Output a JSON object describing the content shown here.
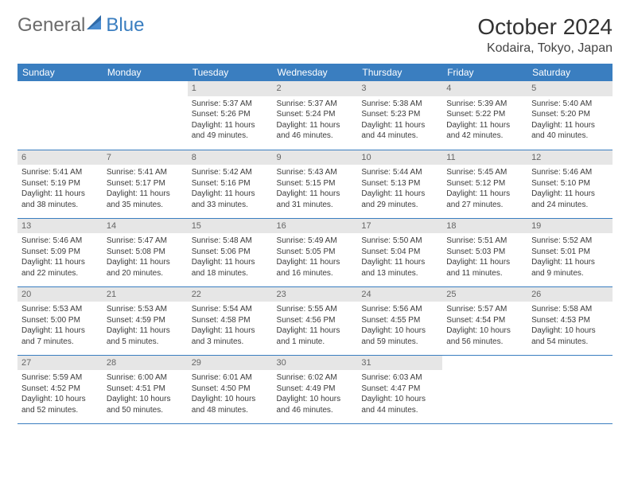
{
  "brand": {
    "part1": "General",
    "part2": "Blue"
  },
  "title": "October 2024",
  "location": "Kodaira, Tokyo, Japan",
  "colors": {
    "header_bg": "#3a7ec0",
    "header_text": "#ffffff",
    "daynum_bg": "#e6e6e6",
    "daynum_text": "#666666",
    "rule": "#3a7ec0",
    "body_text": "#3b3b3b"
  },
  "day_labels": [
    "Sunday",
    "Monday",
    "Tuesday",
    "Wednesday",
    "Thursday",
    "Friday",
    "Saturday"
  ],
  "weeks": [
    [
      null,
      null,
      {
        "n": "1",
        "sunrise": "Sunrise: 5:37 AM",
        "sunset": "Sunset: 5:26 PM",
        "daylight": "Daylight: 11 hours and 49 minutes."
      },
      {
        "n": "2",
        "sunrise": "Sunrise: 5:37 AM",
        "sunset": "Sunset: 5:24 PM",
        "daylight": "Daylight: 11 hours and 46 minutes."
      },
      {
        "n": "3",
        "sunrise": "Sunrise: 5:38 AM",
        "sunset": "Sunset: 5:23 PM",
        "daylight": "Daylight: 11 hours and 44 minutes."
      },
      {
        "n": "4",
        "sunrise": "Sunrise: 5:39 AM",
        "sunset": "Sunset: 5:22 PM",
        "daylight": "Daylight: 11 hours and 42 minutes."
      },
      {
        "n": "5",
        "sunrise": "Sunrise: 5:40 AM",
        "sunset": "Sunset: 5:20 PM",
        "daylight": "Daylight: 11 hours and 40 minutes."
      }
    ],
    [
      {
        "n": "6",
        "sunrise": "Sunrise: 5:41 AM",
        "sunset": "Sunset: 5:19 PM",
        "daylight": "Daylight: 11 hours and 38 minutes."
      },
      {
        "n": "7",
        "sunrise": "Sunrise: 5:41 AM",
        "sunset": "Sunset: 5:17 PM",
        "daylight": "Daylight: 11 hours and 35 minutes."
      },
      {
        "n": "8",
        "sunrise": "Sunrise: 5:42 AM",
        "sunset": "Sunset: 5:16 PM",
        "daylight": "Daylight: 11 hours and 33 minutes."
      },
      {
        "n": "9",
        "sunrise": "Sunrise: 5:43 AM",
        "sunset": "Sunset: 5:15 PM",
        "daylight": "Daylight: 11 hours and 31 minutes."
      },
      {
        "n": "10",
        "sunrise": "Sunrise: 5:44 AM",
        "sunset": "Sunset: 5:13 PM",
        "daylight": "Daylight: 11 hours and 29 minutes."
      },
      {
        "n": "11",
        "sunrise": "Sunrise: 5:45 AM",
        "sunset": "Sunset: 5:12 PM",
        "daylight": "Daylight: 11 hours and 27 minutes."
      },
      {
        "n": "12",
        "sunrise": "Sunrise: 5:46 AM",
        "sunset": "Sunset: 5:10 PM",
        "daylight": "Daylight: 11 hours and 24 minutes."
      }
    ],
    [
      {
        "n": "13",
        "sunrise": "Sunrise: 5:46 AM",
        "sunset": "Sunset: 5:09 PM",
        "daylight": "Daylight: 11 hours and 22 minutes."
      },
      {
        "n": "14",
        "sunrise": "Sunrise: 5:47 AM",
        "sunset": "Sunset: 5:08 PM",
        "daylight": "Daylight: 11 hours and 20 minutes."
      },
      {
        "n": "15",
        "sunrise": "Sunrise: 5:48 AM",
        "sunset": "Sunset: 5:06 PM",
        "daylight": "Daylight: 11 hours and 18 minutes."
      },
      {
        "n": "16",
        "sunrise": "Sunrise: 5:49 AM",
        "sunset": "Sunset: 5:05 PM",
        "daylight": "Daylight: 11 hours and 16 minutes."
      },
      {
        "n": "17",
        "sunrise": "Sunrise: 5:50 AM",
        "sunset": "Sunset: 5:04 PM",
        "daylight": "Daylight: 11 hours and 13 minutes."
      },
      {
        "n": "18",
        "sunrise": "Sunrise: 5:51 AM",
        "sunset": "Sunset: 5:03 PM",
        "daylight": "Daylight: 11 hours and 11 minutes."
      },
      {
        "n": "19",
        "sunrise": "Sunrise: 5:52 AM",
        "sunset": "Sunset: 5:01 PM",
        "daylight": "Daylight: 11 hours and 9 minutes."
      }
    ],
    [
      {
        "n": "20",
        "sunrise": "Sunrise: 5:53 AM",
        "sunset": "Sunset: 5:00 PM",
        "daylight": "Daylight: 11 hours and 7 minutes."
      },
      {
        "n": "21",
        "sunrise": "Sunrise: 5:53 AM",
        "sunset": "Sunset: 4:59 PM",
        "daylight": "Daylight: 11 hours and 5 minutes."
      },
      {
        "n": "22",
        "sunrise": "Sunrise: 5:54 AM",
        "sunset": "Sunset: 4:58 PM",
        "daylight": "Daylight: 11 hours and 3 minutes."
      },
      {
        "n": "23",
        "sunrise": "Sunrise: 5:55 AM",
        "sunset": "Sunset: 4:56 PM",
        "daylight": "Daylight: 11 hours and 1 minute."
      },
      {
        "n": "24",
        "sunrise": "Sunrise: 5:56 AM",
        "sunset": "Sunset: 4:55 PM",
        "daylight": "Daylight: 10 hours and 59 minutes."
      },
      {
        "n": "25",
        "sunrise": "Sunrise: 5:57 AM",
        "sunset": "Sunset: 4:54 PM",
        "daylight": "Daylight: 10 hours and 56 minutes."
      },
      {
        "n": "26",
        "sunrise": "Sunrise: 5:58 AM",
        "sunset": "Sunset: 4:53 PM",
        "daylight": "Daylight: 10 hours and 54 minutes."
      }
    ],
    [
      {
        "n": "27",
        "sunrise": "Sunrise: 5:59 AM",
        "sunset": "Sunset: 4:52 PM",
        "daylight": "Daylight: 10 hours and 52 minutes."
      },
      {
        "n": "28",
        "sunrise": "Sunrise: 6:00 AM",
        "sunset": "Sunset: 4:51 PM",
        "daylight": "Daylight: 10 hours and 50 minutes."
      },
      {
        "n": "29",
        "sunrise": "Sunrise: 6:01 AM",
        "sunset": "Sunset: 4:50 PM",
        "daylight": "Daylight: 10 hours and 48 minutes."
      },
      {
        "n": "30",
        "sunrise": "Sunrise: 6:02 AM",
        "sunset": "Sunset: 4:49 PM",
        "daylight": "Daylight: 10 hours and 46 minutes."
      },
      {
        "n": "31",
        "sunrise": "Sunrise: 6:03 AM",
        "sunset": "Sunset: 4:47 PM",
        "daylight": "Daylight: 10 hours and 44 minutes."
      },
      null,
      null
    ]
  ]
}
